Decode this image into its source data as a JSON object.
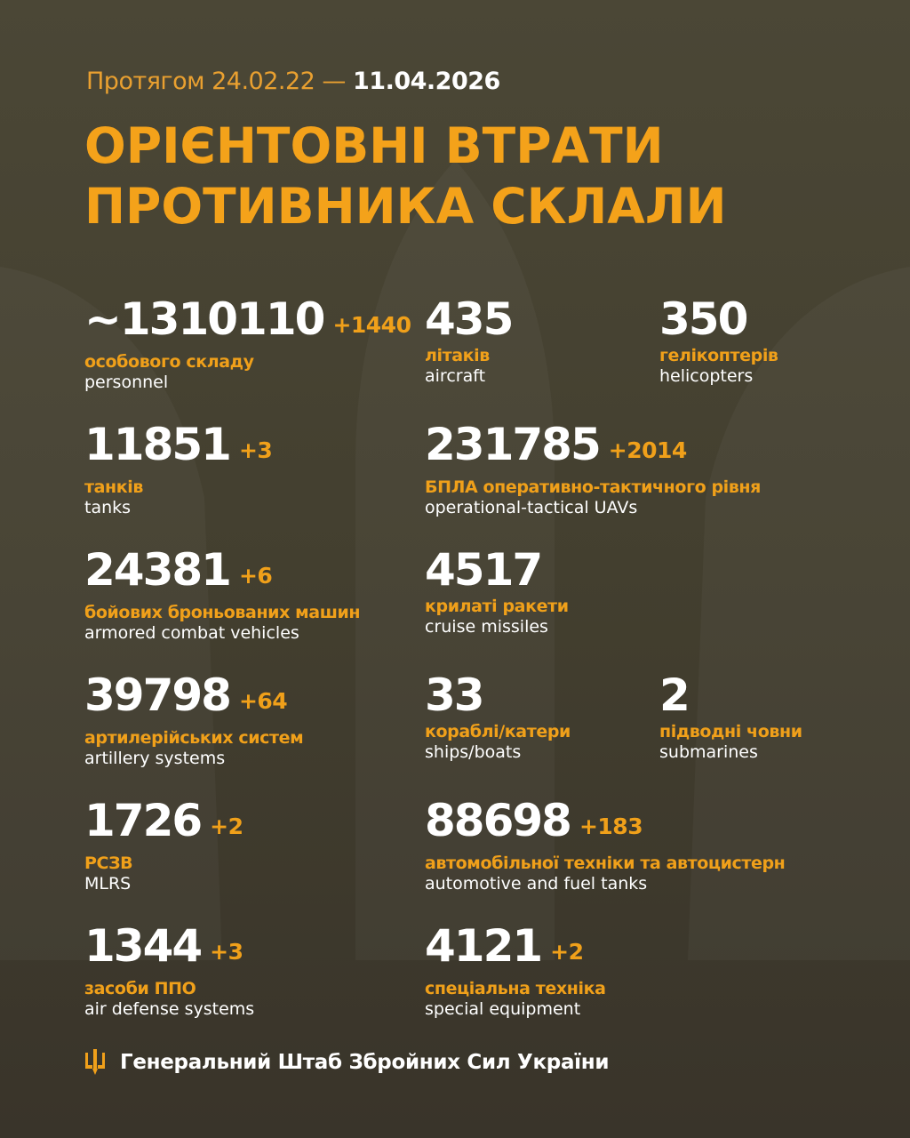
{
  "header": {
    "period_prefix": "Протягом 24.02.22 —",
    "period_end": "11.04.2026",
    "title_line1": "ОРІЄНТОВНІ ВТРАТИ",
    "title_line2": "ПРОТИВНИКА СКЛАЛИ"
  },
  "stats": [
    {
      "num": "~1310110",
      "delta": "+1440",
      "ua": "особового складу",
      "en": "personnel"
    },
    {
      "num": "435",
      "delta": "",
      "ua": "літаків",
      "en": "aircraft"
    },
    {
      "num": "350",
      "delta": "",
      "ua": "гелікоптерів",
      "en": "helicopters"
    },
    {
      "num": "11851",
      "delta": "+3",
      "ua": "танків",
      "en": "tanks"
    },
    {
      "num": "231785",
      "delta": "+2014",
      "ua": "БПЛА оперативно-тактичного рівня",
      "en": "operational-tactical UAVs"
    },
    {
      "num": "24381",
      "delta": "+6",
      "ua": "бойових броньованих машин",
      "en": "armored combat vehicles"
    },
    {
      "num": "4517",
      "delta": "",
      "ua": "крилаті ракети",
      "en": "cruise missiles"
    },
    {
      "num": "39798",
      "delta": "+64",
      "ua": "артилерійських систем",
      "en": "artillery systems"
    },
    {
      "num": "33",
      "delta": "",
      "ua": "кораблі/катери",
      "en": "ships/boats"
    },
    {
      "num": "2",
      "delta": "",
      "ua": "підводні човни",
      "en": "submarines"
    },
    {
      "num": "1726",
      "delta": "+2",
      "ua": "РСЗВ",
      "en": "MLRS"
    },
    {
      "num": "88698",
      "delta": "+183",
      "ua": "автомобільної техніки та автоцистерн",
      "en": "automotive and fuel tanks"
    },
    {
      "num": "1344",
      "delta": "+3",
      "ua": "засоби ППО",
      "en": "air defense systems"
    },
    {
      "num": "4121",
      "delta": "+2",
      "ua": "спеціальна техніка",
      "en": "special equipment"
    }
  ],
  "footer": {
    "icon": "trident-icon",
    "label": "Генеральний Штаб Збройних Сил України"
  },
  "colors": {
    "accent": "#f4a21a",
    "background": "#45412f",
    "text": "#ffffff"
  }
}
